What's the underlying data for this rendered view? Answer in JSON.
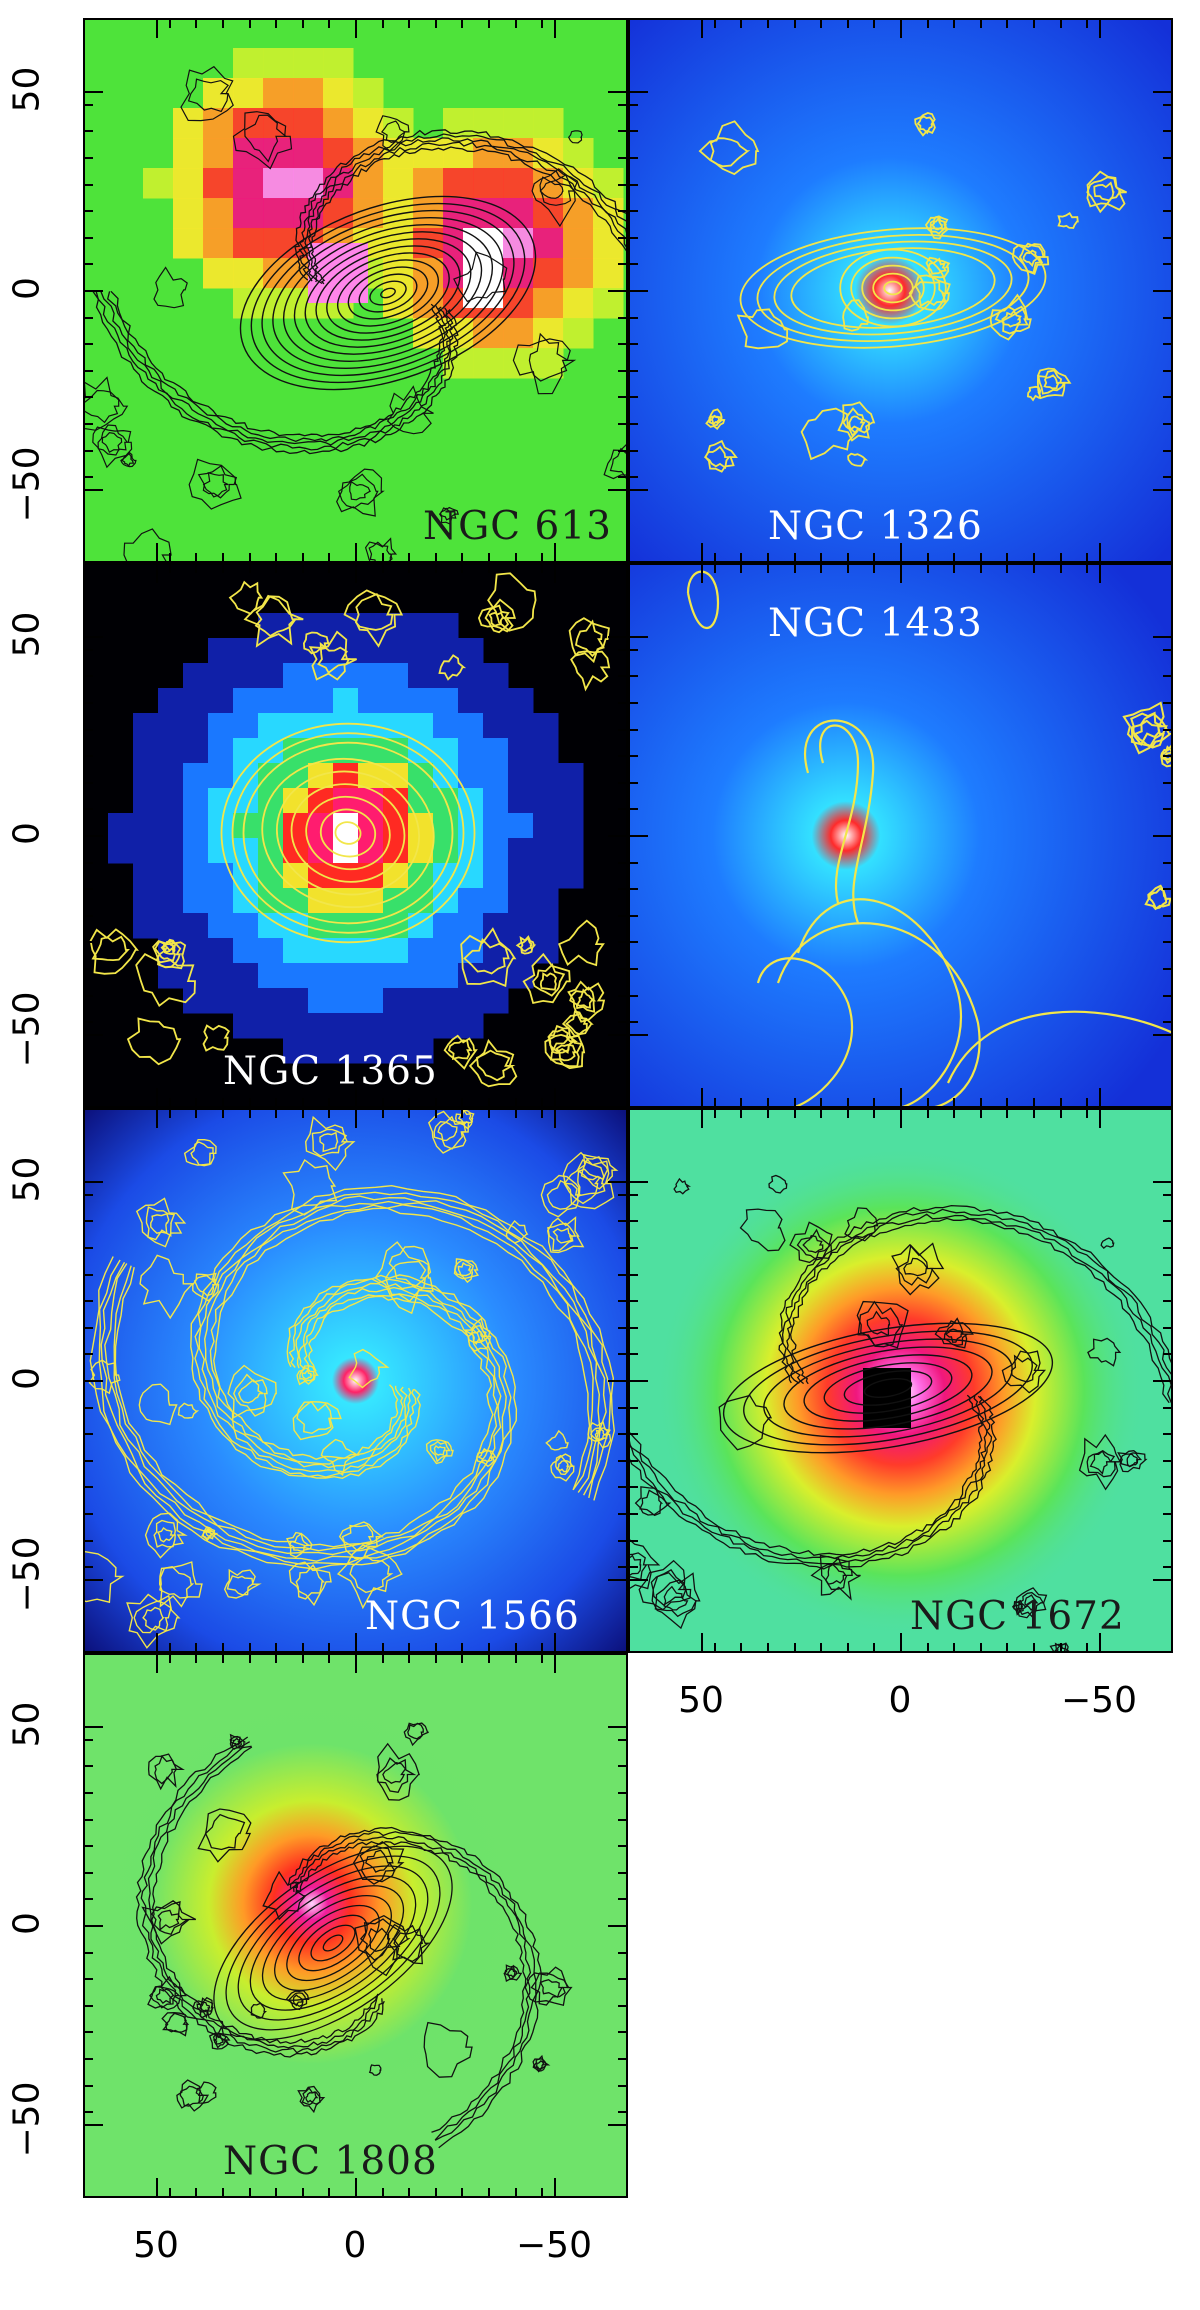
{
  "panels": [
    {
      "id": "ngc613",
      "label": "NGC 613",
      "label_style": "dark",
      "contour_color": "#111111",
      "background": "green-red"
    },
    {
      "id": "ngc1326",
      "label": "NGC 1326",
      "label_style": "light",
      "contour_color": "#f2e64a",
      "background": "blue"
    },
    {
      "id": "ngc1365",
      "label": "NGC 1365",
      "label_style": "light",
      "contour_color": "#f2e64a",
      "background": "dark-blue"
    },
    {
      "id": "ngc1433",
      "label": "NGC 1433",
      "label_style": "light",
      "contour_color": "#f2e64a",
      "background": "blue"
    },
    {
      "id": "ngc1566",
      "label": "NGC 1566",
      "label_style": "light",
      "contour_color": "#f2e64a",
      "background": "blue"
    },
    {
      "id": "ngc1672",
      "label": "NGC 1672",
      "label_style": "dark",
      "contour_color": "#111111",
      "background": "green-red"
    },
    {
      "id": "ngc1808",
      "label": "NGC 1808",
      "label_style": "dark",
      "contour_color": "#111111",
      "background": "green-red"
    }
  ],
  "axes": {
    "y_tick_labels": [
      "50",
      "0",
      "−50"
    ],
    "x_tick_labels": [
      "50",
      "0",
      "−50"
    ]
  }
}
